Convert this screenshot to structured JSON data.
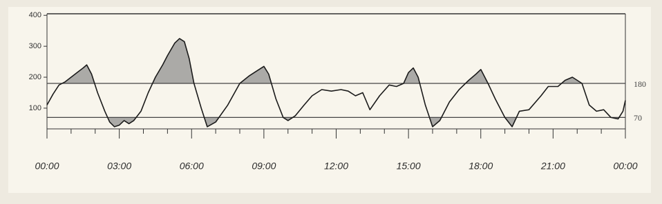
{
  "chart_data": {
    "type": "line",
    "x": [
      0,
      0.25,
      0.5,
      0.75,
      1.0,
      1.25,
      1.5,
      1.65,
      1.85,
      2.1,
      2.4,
      2.6,
      2.8,
      3.0,
      3.2,
      3.4,
      3.6,
      3.9,
      4.2,
      4.5,
      4.8,
      5.0,
      5.3,
      5.5,
      5.7,
      5.9,
      6.1,
      6.4,
      6.65,
      7.0,
      7.5,
      8.0,
      8.4,
      8.7,
      9.0,
      9.2,
      9.5,
      9.8,
      10.0,
      10.3,
      10.67,
      11.0,
      11.4,
      11.8,
      12.2,
      12.5,
      12.8,
      13.1,
      13.4,
      13.8,
      14.2,
      14.5,
      14.8,
      15.0,
      15.2,
      15.4,
      15.7,
      16.0,
      16.3,
      16.7,
      17.1,
      17.5,
      17.8,
      18.0,
      18.3,
      18.6,
      19.0,
      19.3,
      19.6,
      20.0,
      20.5,
      20.8,
      21.2,
      21.5,
      21.8,
      22.2,
      22.5,
      22.8,
      23.1,
      23.4,
      23.7,
      23.9,
      24.0
    ],
    "series": [
      {
        "color": "#1a1a1a",
        "values": [
          110,
          145,
          175,
          185,
          200,
          215,
          230,
          240,
          210,
          150,
          90,
          55,
          40,
          45,
          60,
          50,
          60,
          90,
          150,
          200,
          240,
          270,
          310,
          325,
          315,
          260,
          180,
          100,
          40,
          55,
          110,
          180,
          205,
          220,
          235,
          210,
          130,
          70,
          60,
          75,
          110,
          140,
          160,
          155,
          160,
          155,
          140,
          150,
          95,
          140,
          175,
          170,
          180,
          215,
          230,
          200,
          110,
          40,
          60,
          120,
          160,
          190,
          210,
          225,
          180,
          130,
          70,
          40,
          90,
          95,
          140,
          170,
          170,
          190,
          200,
          180,
          110,
          90,
          95,
          70,
          65,
          90,
          125
        ]
      }
    ],
    "xlim": [
      0,
      24
    ],
    "xticks": [
      {
        "value": 0,
        "label": "00:00"
      },
      {
        "value": 3,
        "label": "03:00"
      },
      {
        "value": 6,
        "label": "06:00"
      },
      {
        "value": 9,
        "label": "09:00"
      },
      {
        "value": 12,
        "label": "12:00"
      },
      {
        "value": 15,
        "label": "15:00"
      },
      {
        "value": 18,
        "label": "18:00"
      },
      {
        "value": 21,
        "label": "21:00"
      },
      {
        "value": 24,
        "label": "00:00"
      }
    ],
    "xminorticks": [
      1,
      2,
      4,
      5,
      7,
      8,
      10,
      11,
      13,
      14,
      16,
      17,
      19,
      20,
      22,
      23
    ],
    "ylim": [
      33,
      405
    ],
    "yticks": [
      100,
      200,
      300,
      400
    ],
    "hlines": [
      180,
      70
    ],
    "shade_color": "#8a8a8a"
  }
}
